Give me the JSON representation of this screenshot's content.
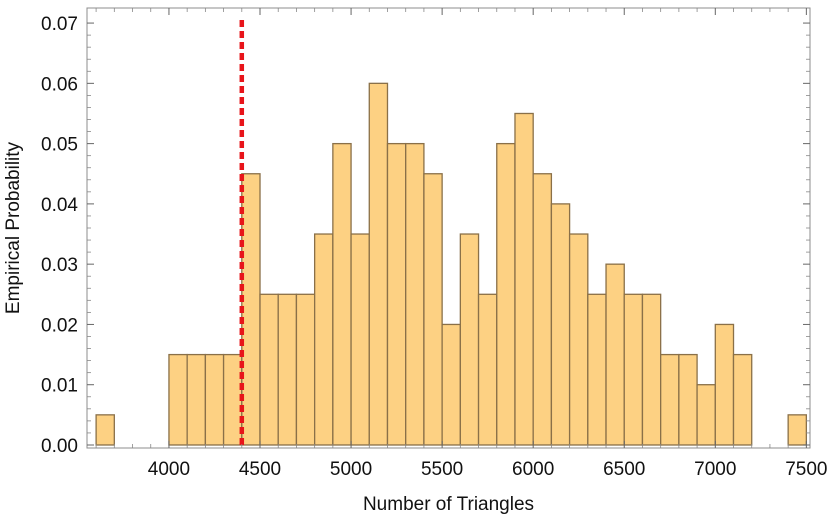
{
  "chart_data": {
    "type": "bar",
    "subtype": "histogram",
    "title": "",
    "xlabel": "Number of Triangles",
    "ylabel": "Empirical Probability",
    "xlim": [
      3550,
      7520
    ],
    "ylim": [
      -0.0005,
      0.0725
    ],
    "bin_width": 100,
    "bins": [
      {
        "start": 3600,
        "value": 0.005
      },
      {
        "start": 4000,
        "value": 0.015
      },
      {
        "start": 4100,
        "value": 0.015
      },
      {
        "start": 4200,
        "value": 0.015
      },
      {
        "start": 4300,
        "value": 0.015
      },
      {
        "start": 4400,
        "value": 0.045
      },
      {
        "start": 4500,
        "value": 0.025
      },
      {
        "start": 4600,
        "value": 0.025
      },
      {
        "start": 4700,
        "value": 0.025
      },
      {
        "start": 4800,
        "value": 0.035
      },
      {
        "start": 4900,
        "value": 0.05
      },
      {
        "start": 5000,
        "value": 0.035
      },
      {
        "start": 5100,
        "value": 0.06
      },
      {
        "start": 5200,
        "value": 0.05
      },
      {
        "start": 5300,
        "value": 0.05
      },
      {
        "start": 5400,
        "value": 0.045
      },
      {
        "start": 5500,
        "value": 0.02
      },
      {
        "start": 5600,
        "value": 0.035
      },
      {
        "start": 5700,
        "value": 0.025
      },
      {
        "start": 5800,
        "value": 0.05
      },
      {
        "start": 5900,
        "value": 0.055
      },
      {
        "start": 6000,
        "value": 0.045
      },
      {
        "start": 6100,
        "value": 0.04
      },
      {
        "start": 6200,
        "value": 0.035
      },
      {
        "start": 6300,
        "value": 0.025
      },
      {
        "start": 6400,
        "value": 0.03
      },
      {
        "start": 6500,
        "value": 0.025
      },
      {
        "start": 6600,
        "value": 0.025
      },
      {
        "start": 6700,
        "value": 0.015
      },
      {
        "start": 6800,
        "value": 0.015
      },
      {
        "start": 6900,
        "value": 0.01
      },
      {
        "start": 7000,
        "value": 0.02
      },
      {
        "start": 7100,
        "value": 0.015
      },
      {
        "start": 7400,
        "value": 0.005
      }
    ],
    "reference_line": {
      "x": 4400,
      "color": "#e8141a",
      "style": "dashed"
    },
    "x_ticks": [
      4000,
      4500,
      5000,
      5500,
      6000,
      6500,
      7000,
      7500
    ],
    "x_tick_labels": [
      "4000",
      "4500",
      "5000",
      "5500",
      "6000",
      "6500",
      "7000",
      "7500"
    ],
    "y_ticks": [
      0,
      0.01,
      0.02,
      0.03,
      0.04,
      0.05,
      0.06,
      0.07
    ],
    "y_tick_labels": [
      "0.00",
      "0.01",
      "0.02",
      "0.03",
      "0.04",
      "0.05",
      "0.06",
      "0.07"
    ],
    "grid": false,
    "colors": {
      "bar_fill": "#fdd183",
      "bar_edge": "#8a7048",
      "frame": "#8c8c8c"
    }
  }
}
